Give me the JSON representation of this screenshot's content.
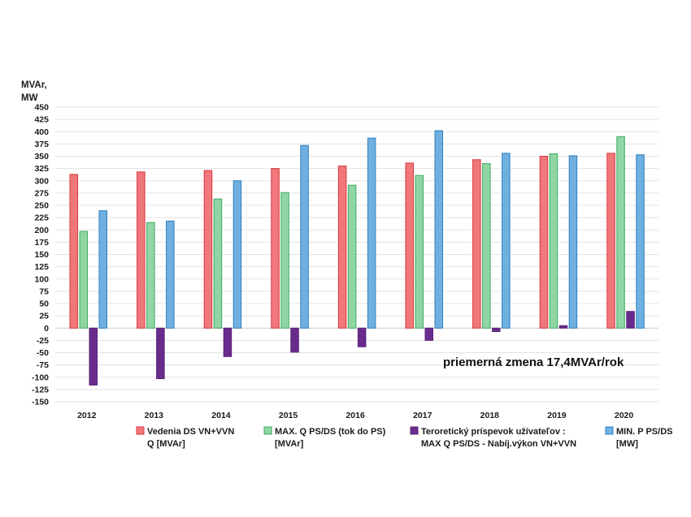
{
  "chart_data": {
    "type": "bar",
    "title": "",
    "ylabel_lines": [
      "MVAr,",
      "MW"
    ],
    "xlabel": "",
    "ylim": [
      -150,
      450
    ],
    "ytick_step": 25,
    "grid": true,
    "legend_position": "bottom",
    "categories": [
      "2012",
      "2013",
      "2014",
      "2015",
      "2016",
      "2017",
      "2018",
      "2019",
      "2020"
    ],
    "series": [
      {
        "key": "vedenia",
        "name_lines": [
          "Vedenia DS VN+VVN",
          "Q [MVAr]"
        ],
        "color": "#f0787a",
        "border": "#d9363e",
        "values": [
          313,
          318,
          321,
          325,
          330,
          336,
          343,
          350,
          356
        ]
      },
      {
        "key": "maxq",
        "name_lines": [
          "MAX. Q PS/DS (tok do PS)",
          "[MVAr]"
        ],
        "color": "#8fd6a3",
        "border": "#3faa62",
        "values": [
          197,
          215,
          263,
          276,
          291,
          311,
          335,
          355,
          390
        ]
      },
      {
        "key": "teoret",
        "name_lines": [
          "Teroretický príspevok užívateľov :",
          "MAX Q PS/DS - Nabíj.výkon VN+VVN"
        ],
        "color": "#6a2c8c",
        "border": "#5a2078",
        "values": [
          -116,
          -103,
          -58,
          -49,
          -38,
          -25,
          -7,
          5,
          34
        ]
      },
      {
        "key": "minp",
        "name_lines": [
          "MIN. P PS/DS",
          "[MW]"
        ],
        "color": "#6fb0e0",
        "border": "#2f7fc1",
        "values": [
          239,
          218,
          300,
          372,
          387,
          402,
          356,
          351,
          353
        ]
      }
    ],
    "annotations": [
      {
        "text": "priemerná zmena 17,4MVAr/rok"
      }
    ]
  }
}
